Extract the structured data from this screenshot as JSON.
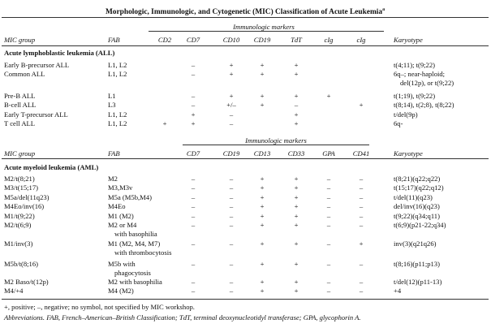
{
  "title": "Morphologic, Immunologic, and Cytogenetic (MIC) Classification of Acute Leukemia",
  "title_note": "a",
  "all": {
    "group_header": "Immunologic markers",
    "headers": [
      "MIC group",
      "FAB",
      "CD2",
      "CD7",
      "CD10",
      "CD19",
      "TdT",
      "cIg",
      "cIg",
      "Karyotype"
    ],
    "section": "Acute lymphoblastic leukemia (ALL)",
    "rows": [
      [
        "Early B-precursor ALL",
        "L1, L2",
        "",
        "–",
        "+",
        "+",
        "+",
        "",
        "",
        "t(4;11); t(9;22)"
      ],
      [
        "Common ALL",
        "L1, L2",
        "",
        "–",
        "+",
        "+",
        "+",
        "",
        "",
        [
          "6q–; near-haploid;",
          "del(12p), or t(9;22)"
        ]
      ],
      [
        "Pre-B ALL",
        "L1",
        "",
        "–",
        "+",
        "+",
        "+",
        "+",
        "",
        "t(1;19), t(9;22)"
      ],
      [
        "B-cell ALL",
        "L3",
        "",
        "–",
        "+/–",
        "+",
        "–",
        "",
        "+",
        "t(8;14), t(2;8), t(8;22)"
      ],
      [
        "Early T-precursor ALL",
        "L1, L2",
        "",
        "+",
        "–",
        "",
        "+",
        "",
        "",
        "t/del(9p)"
      ],
      [
        "T cell ALL",
        "L1, L2",
        "+",
        "+",
        "–",
        "",
        "+",
        "",
        "",
        "6q-"
      ]
    ]
  },
  "aml": {
    "group_header": "Immunologic markers",
    "headers": [
      "MIC group",
      "FAB",
      "CD7",
      "CD19",
      "CD13",
      "CD33",
      "GPA",
      "CD41",
      "Karyotype"
    ],
    "section": "Acute myeloid leukemia (AML)",
    "rows": [
      [
        "M2/t(8;21)",
        "M2",
        "–",
        "–",
        "+",
        "+",
        "–",
        "–",
        "t(8;21)(q22;q22)"
      ],
      [
        "M3/t(15;17)",
        "M3,M3v",
        "–",
        "–",
        "+",
        "+",
        "–",
        "–",
        "t(15;17)(q22;q12)"
      ],
      [
        "M5a/del(11q23)",
        "M5a (M5b,M4)",
        "–",
        "–",
        "+",
        "+",
        "–",
        "–",
        "t/del(11)(q23)"
      ],
      [
        "M4Eo/inv(16)",
        "M4Eo",
        "–",
        "–",
        "+",
        "+",
        "–",
        "–",
        "del/inv(16)(q23)"
      ],
      [
        "M1/t(9;22)",
        "M1 (M2)",
        "–",
        "–",
        "+",
        "+",
        "–",
        "–",
        "t(9;22)(q34;q11)"
      ],
      [
        "M2/t(6;9)",
        [
          "M2 or M4",
          "with basophilia"
        ],
        "–",
        "–",
        "+",
        "+",
        "–",
        "–",
        "t(6;9)(p21-22;q34)"
      ],
      [
        "M1/inv(3)",
        [
          "M1 (M2, M4, M7)",
          "with thrombocytosis"
        ],
        "–",
        "–",
        "+",
        "+",
        "–",
        "+",
        "inv(3)(q21q26)"
      ],
      [
        "M5b/t(8;16)",
        [
          "M5b with",
          "phagocytosis"
        ],
        "–",
        "–",
        "+",
        "+",
        "–",
        "–",
        "t(8;16)(p11;p13)"
      ],
      [
        "M2 Baso/t(12p)",
        "M2 with basophilia",
        "–",
        "–",
        "+",
        "+",
        "–",
        "–",
        "t/del(12)(p11-13)"
      ],
      [
        "M4/+4",
        "M4 (M2)",
        "–",
        "–",
        "+",
        "+",
        "–",
        "–",
        "+4"
      ]
    ]
  },
  "footnotes": [
    "+, positive; –, negative; no symbol, not specified by MIC workshop.",
    "Abbreviations. FAB, French–American–British Classification; TdT, terminal deoxynucleotidyl transferase; GPA, glycophorin A."
  ]
}
